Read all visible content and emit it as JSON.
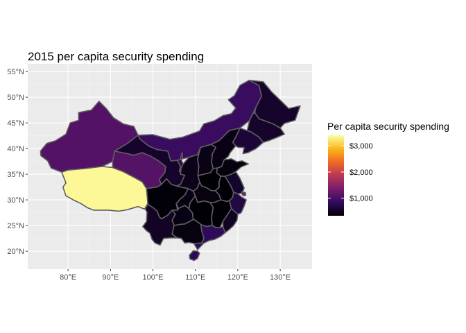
{
  "chart_data": {
    "type": "choropleth-map",
    "title": "2015 per capita security spending",
    "xlabel": "",
    "ylabel": "",
    "x_ticks": [
      "80°E",
      "90°E",
      "100°E",
      "110°E",
      "120°E",
      "130°E"
    ],
    "x_tick_values": [
      80,
      90,
      100,
      110,
      120,
      130
    ],
    "y_ticks": [
      "20°N",
      "25°N",
      "30°N",
      "35°N",
      "40°N",
      "45°N",
      "50°N",
      "55°N"
    ],
    "y_tick_values": [
      20,
      25,
      30,
      35,
      40,
      45,
      50,
      55
    ],
    "xlim": [
      70.5,
      137.5
    ],
    "ylim": [
      16.5,
      56.5
    ],
    "grid": true,
    "colormap": [
      "#000004",
      "#320a5e",
      "#781c6d",
      "#bc3754",
      "#ed6925",
      "#fbb61a",
      "#fcffa4"
    ],
    "legend": {
      "title": "Per capita security spending",
      "position": "right",
      "labels": [
        "$3,000",
        "$2,000",
        "$1,000"
      ],
      "label_values": [
        3000,
        2000,
        1000
      ],
      "range": [
        330,
        3400
      ]
    },
    "regions": [
      {
        "label": "Xinjiang",
        "value": 1080
      },
      {
        "label": "Tibet",
        "value": 3350
      },
      {
        "label": "Qinghai",
        "value": 1100
      },
      {
        "label": "Gansu",
        "value": 560
      },
      {
        "label": "Inner Mongolia",
        "value": 900
      },
      {
        "label": "Heilongjiang",
        "value": 560
      },
      {
        "label": "Jilin",
        "value": 560
      },
      {
        "label": "Liaoning",
        "value": 620
      },
      {
        "label": "Beijing",
        "value": 1580
      },
      {
        "label": "Tianjin",
        "value": 1150
      },
      {
        "label": "Hebei",
        "value": 420
      },
      {
        "label": "Shanxi",
        "value": 430
      },
      {
        "label": "Ningxia",
        "value": 720
      },
      {
        "label": "Shaanxi",
        "value": 450
      },
      {
        "label": "Henan",
        "value": 330
      },
      {
        "label": "Shandong",
        "value": 400
      },
      {
        "label": "Sichuan",
        "value": 350
      },
      {
        "label": "Chongqing",
        "value": 420
      },
      {
        "label": "Hubei",
        "value": 400
      },
      {
        "label": "Anhui",
        "value": 340
      },
      {
        "label": "Jiangsu",
        "value": 550
      },
      {
        "label": "Shanghai",
        "value": 1300
      },
      {
        "label": "Zhejiang",
        "value": 700
      },
      {
        "label": "Yunnan",
        "value": 520
      },
      {
        "label": "Guizhou",
        "value": 420
      },
      {
        "label": "Hunan",
        "value": 340
      },
      {
        "label": "Jiangxi",
        "value": 340
      },
      {
        "label": "Fujian",
        "value": 500
      },
      {
        "label": "Guangxi",
        "value": 400
      },
      {
        "label": "Guangdong",
        "value": 820
      },
      {
        "label": "Hainan",
        "value": 800
      }
    ]
  }
}
